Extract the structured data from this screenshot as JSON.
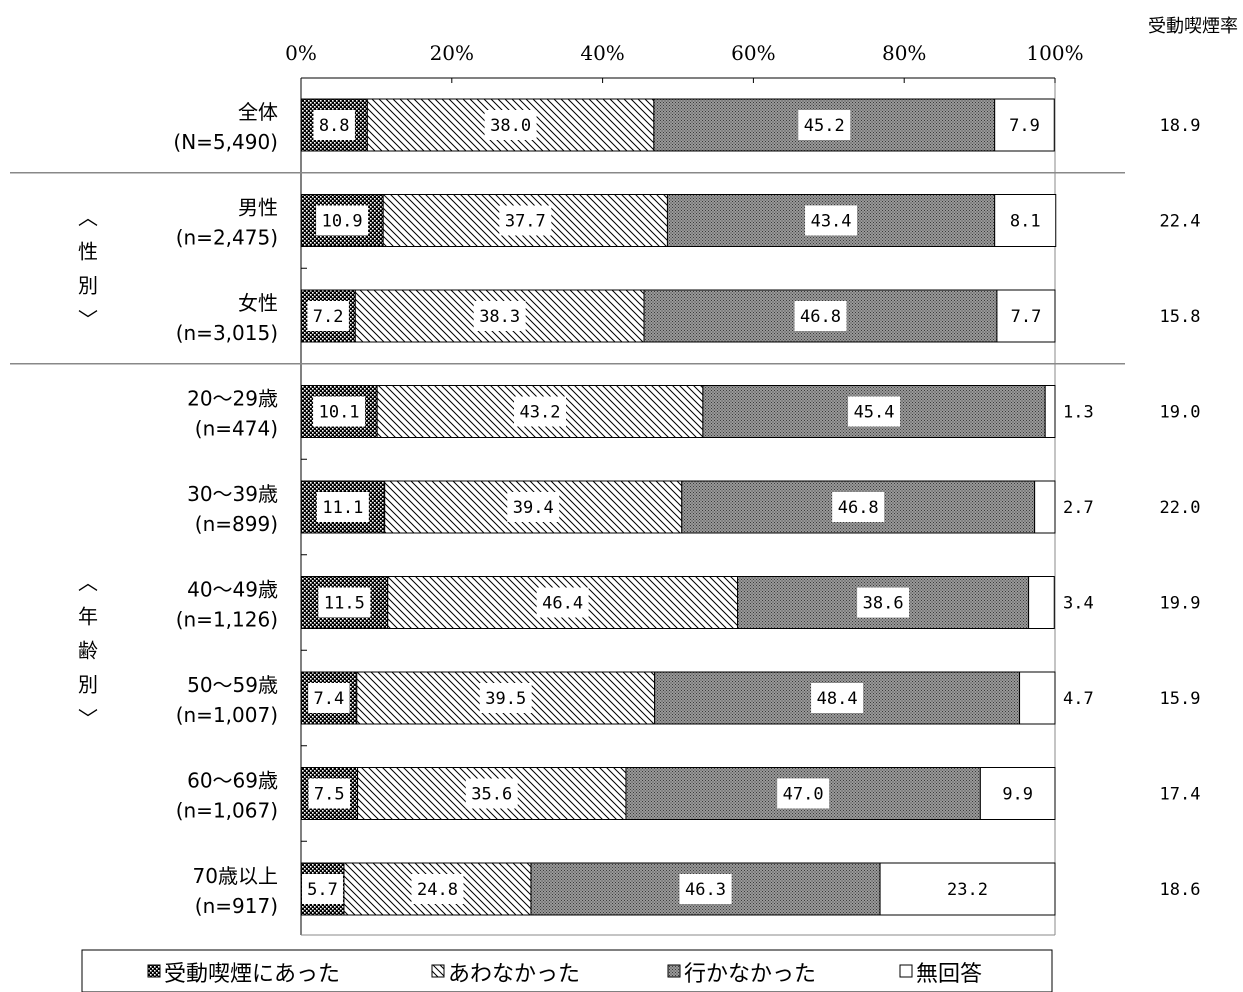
{
  "chart_data": {
    "type": "bar",
    "orientation": "horizontal",
    "stacked": true,
    "xlim": [
      0,
      100
    ],
    "x_ticks": [
      "0%",
      "20%",
      "40%",
      "60%",
      "80%",
      "100%"
    ],
    "extra_column_title": "受動喫煙率",
    "series": [
      {
        "name": "受動喫煙にあった",
        "color": "#000000"
      },
      {
        "name": "あわなかった",
        "color": "#ffffff"
      },
      {
        "name": "行かなかった",
        "color": "#808080"
      },
      {
        "name": "無回答",
        "color": "#ffffff"
      }
    ],
    "groups": [
      {
        "label": [
          "︿",
          "性",
          "別",
          "﹀"
        ],
        "rows": [
          1,
          2
        ]
      },
      {
        "label": [
          "︿",
          "年",
          "齢",
          "別",
          "﹀"
        ],
        "rows": [
          3,
          8
        ]
      }
    ],
    "categories": [
      {
        "label": "全体",
        "n": "(N=5,490)",
        "values": [
          8.8,
          38.0,
          45.2,
          7.9
        ],
        "labels": [
          "8.8",
          "38.0",
          "45.2",
          "7.9"
        ],
        "rate": "18.9"
      },
      {
        "label": "男性",
        "n": "(n=2,475)",
        "values": [
          10.9,
          37.7,
          43.4,
          8.1
        ],
        "labels": [
          "10.9",
          "37.7",
          "43.4",
          "8.1"
        ],
        "rate": "22.4"
      },
      {
        "label": "女性",
        "n": "(n=3,015)",
        "values": [
          7.2,
          38.3,
          46.8,
          7.7
        ],
        "labels": [
          "7.2",
          "38.3",
          "46.8",
          "7.7"
        ],
        "rate": "15.8"
      },
      {
        "label": "20～29歳",
        "n": "(n=474)",
        "values": [
          10.1,
          43.2,
          45.4,
          1.3
        ],
        "labels": [
          "10.1",
          "43.2",
          "45.4",
          "1.3"
        ],
        "rate": "19.0"
      },
      {
        "label": "30～39歳",
        "n": "(n=899)",
        "values": [
          11.1,
          39.4,
          46.8,
          2.7
        ],
        "labels": [
          "11.1",
          "39.4",
          "46.8",
          "2.7"
        ],
        "rate": "22.0"
      },
      {
        "label": "40～49歳",
        "n": "(n=1,126)",
        "values": [
          11.5,
          46.4,
          38.6,
          3.4
        ],
        "labels": [
          "11.5",
          "46.4",
          "38.6",
          "3.4"
        ],
        "rate": "19.9"
      },
      {
        "label": "50～59歳",
        "n": "(n=1,007)",
        "values": [
          7.4,
          39.5,
          48.4,
          4.7
        ],
        "labels": [
          "7.4",
          "39.5",
          "48.4",
          "4.7"
        ],
        "rate": "15.9"
      },
      {
        "label": "60～69歳",
        "n": "(n=1,067)",
        "values": [
          7.5,
          35.6,
          47.0,
          9.9
        ],
        "labels": [
          "7.5",
          "35.6",
          "47.0",
          "9.9"
        ],
        "rate": "17.4"
      },
      {
        "label": "70歳以上",
        "n": "(n=917)",
        "values": [
          5.7,
          24.8,
          46.3,
          23.2
        ],
        "labels": [
          "5.7",
          "24.8",
          "46.3",
          "23.2"
        ],
        "rate": "18.6"
      }
    ]
  }
}
